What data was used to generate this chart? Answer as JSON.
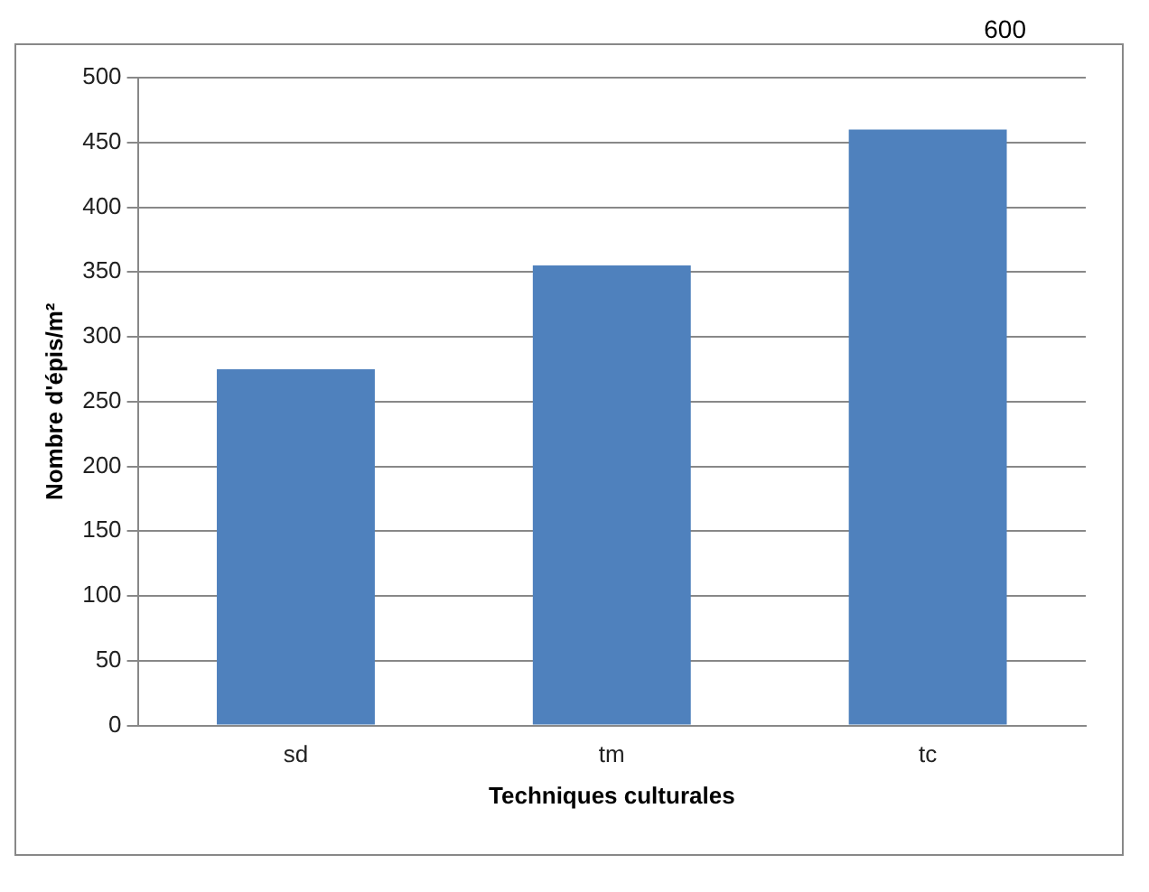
{
  "chart_data": {
    "type": "bar",
    "xlabel": "Techniques culturales",
    "ylabel": "Nombre d'épis/m²",
    "categories": [
      "sd",
      "tm",
      "tc"
    ],
    "values": [
      275,
      355,
      460
    ],
    "color": "#4f81bd",
    "ylim": [
      0,
      500
    ],
    "yticks": [
      0,
      50,
      100,
      150,
      200,
      250,
      300,
      350,
      400,
      450,
      500
    ],
    "grid": "y",
    "annotations": [
      "600"
    ]
  }
}
